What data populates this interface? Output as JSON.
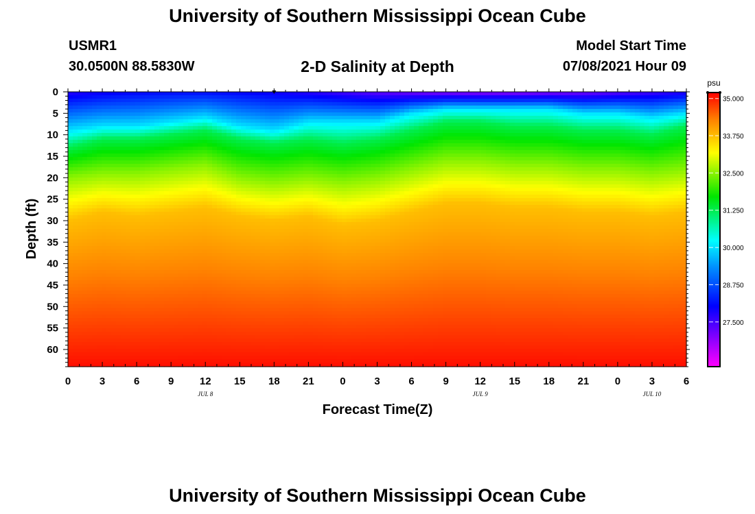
{
  "header": {
    "title": "University of Southern Mississippi Ocean Cube",
    "station_id": "USMR1",
    "station_coords": "30.0500N  88.5830W",
    "subtitle": "2-D Salinity at Depth",
    "model_label": "Model Start Time",
    "model_time": "07/08/2021 Hour 09"
  },
  "footer": {
    "title": "University of Southern Mississippi Ocean Cube"
  },
  "chart_data": {
    "type": "heatmap",
    "title": "2-D Salinity at Depth",
    "xlabel": "Forecast Time(Z)",
    "ylabel": "Depth (ft)",
    "x_range_hours": [
      0,
      54
    ],
    "y_range_ft": [
      0,
      64
    ],
    "x_ticks": [
      "0",
      "3",
      "6",
      "9",
      "12",
      "15",
      "18",
      "21",
      "0",
      "3",
      "6",
      "9",
      "12",
      "15",
      "18",
      "21",
      "0",
      "3",
      "6"
    ],
    "date_labels": [
      {
        "label": "JUL 8",
        "hour": 12
      },
      {
        "label": "JUL 9",
        "hour": 36
      },
      {
        "label": "JUL 10",
        "hour": 51
      }
    ],
    "y_ticks": [
      0,
      5,
      10,
      15,
      20,
      25,
      30,
      35,
      40,
      45,
      50,
      55,
      60
    ],
    "colorbar": {
      "unit": "psu",
      "min": 26.0,
      "max": 35.2,
      "labels": [
        "35.000",
        "33.750",
        "32.500",
        "31.250",
        "30.000",
        "28.750",
        "27.500"
      ],
      "label_values": [
        35.0,
        33.75,
        32.5,
        31.25,
        30.0,
        28.75,
        27.5
      ]
    },
    "isohaline_depth_ft": {
      "hours": [
        0,
        3,
        6,
        9,
        12,
        15,
        18,
        21,
        24,
        27,
        30,
        33,
        36,
        39,
        42,
        45,
        48,
        51,
        54
      ],
      "salinity_30_0": [
        9,
        8,
        8,
        7,
        6,
        8,
        9,
        7,
        7,
        7,
        5,
        4,
        4,
        4,
        4,
        5,
        5,
        6,
        5
      ],
      "salinity_31_25": [
        13,
        11,
        11,
        10,
        9,
        11,
        12,
        11,
        12,
        11,
        9,
        7,
        7,
        8,
        8,
        9,
        9,
        10,
        8
      ],
      "salinity_32_5": [
        20,
        19,
        19,
        18,
        17,
        20,
        21,
        20,
        21,
        20,
        18,
        16,
        16,
        17,
        17,
        18,
        18,
        19,
        18
      ],
      "salinity_33_75": [
        30,
        28,
        29,
        28,
        27,
        29,
        30,
        29,
        31,
        30,
        28,
        26,
        26,
        27,
        27,
        28,
        28,
        29,
        28
      ]
    },
    "surface_min_salinity": 26.5,
    "bottom_salinity": 35.1
  }
}
